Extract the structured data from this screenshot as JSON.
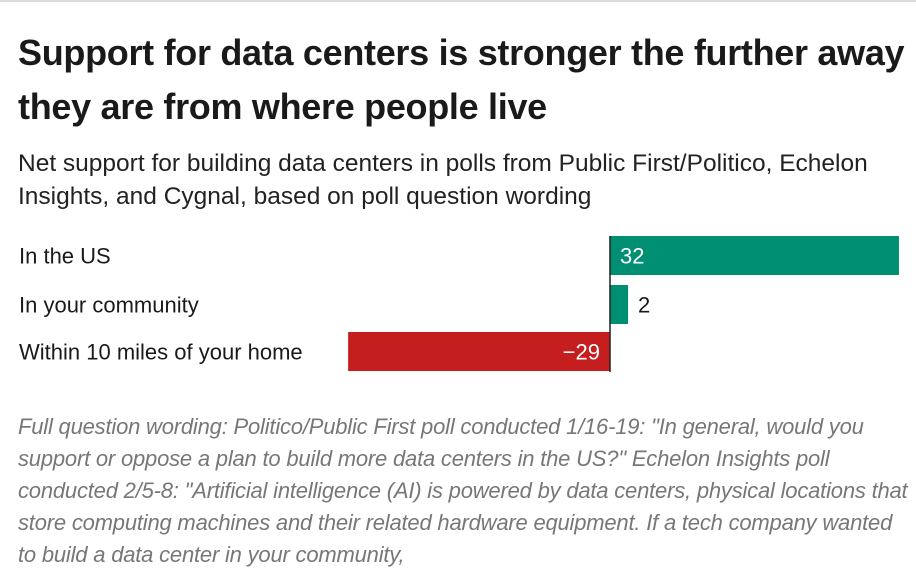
{
  "title": "Support for data centers is stronger the further away they are from where people live",
  "subtitle": "Net support for building data centers in polls from Public First/Politico, Echelon Insights, and Cygnal, based on poll question wording",
  "chart_data": {
    "type": "bar",
    "orientation": "horizontal",
    "categories": [
      "In the US",
      "In your community",
      "Within 10 miles of your home"
    ],
    "values": [
      32,
      2,
      -29
    ],
    "value_labels": [
      "32",
      "2",
      "−29"
    ],
    "xlim": [
      -29,
      32
    ],
    "colors": {
      "positive": "#008f73",
      "negative": "#c41e1e"
    },
    "grid": false,
    "xlabel": "",
    "ylabel": ""
  },
  "note": "Full question wording: Politico/Public First poll conducted 1/16-19: \"In general, would you support or oppose a plan to build more data centers in the US?\" Echelon Insights poll conducted 2/5-8: \"Artificial intelligence (AI) is powered by data centers, physical locations that store computing machines and their related hardware equipment. If a tech company wanted to build a data center in your community,"
}
